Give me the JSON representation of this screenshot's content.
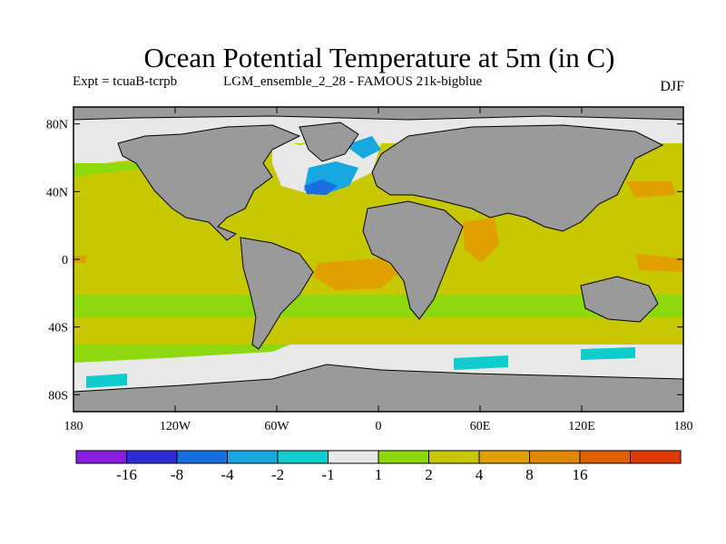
{
  "title": "Ocean Potential Temperature at 5m (in C)",
  "experiment": "Expt = tcuaB-tcrpb",
  "run": "LGM_ensemble_2_28 - FAMOUS 21k-bigblue",
  "season": "DJF",
  "map": {
    "projection": "equirectangular",
    "lon_range": [
      -180,
      180
    ],
    "lat_range": [
      -90,
      90
    ],
    "land_color": "#9a9a9a",
    "coastline_color": "#000000",
    "lat_ticks": [
      {
        "value": 80,
        "label": "80N"
      },
      {
        "value": 40,
        "label": "40N"
      },
      {
        "value": 0,
        "label": "0"
      },
      {
        "value": -40,
        "label": "40S"
      },
      {
        "value": -80,
        "label": "80S"
      }
    ],
    "lon_ticks": [
      {
        "value": -180,
        "label": "180"
      },
      {
        "value": -120,
        "label": "120W"
      },
      {
        "value": -60,
        "label": "60W"
      },
      {
        "value": 0,
        "label": "0"
      },
      {
        "value": 60,
        "label": "60E"
      },
      {
        "value": 120,
        "label": "120E"
      },
      {
        "value": 180,
        "label": "180"
      }
    ]
  },
  "colorbar": {
    "colors": [
      "#8a1ee0",
      "#2b2bd8",
      "#1a6fe0",
      "#18a8e0",
      "#10cccc",
      "#e8e8e8",
      "#8ed80e",
      "#c8c800",
      "#e0a000",
      "#e08800",
      "#e06000",
      "#e03a00"
    ],
    "labels": [
      "-16",
      "-8",
      "-4",
      "-2",
      "-1",
      "1",
      "2",
      "4",
      "8",
      "16"
    ]
  }
}
